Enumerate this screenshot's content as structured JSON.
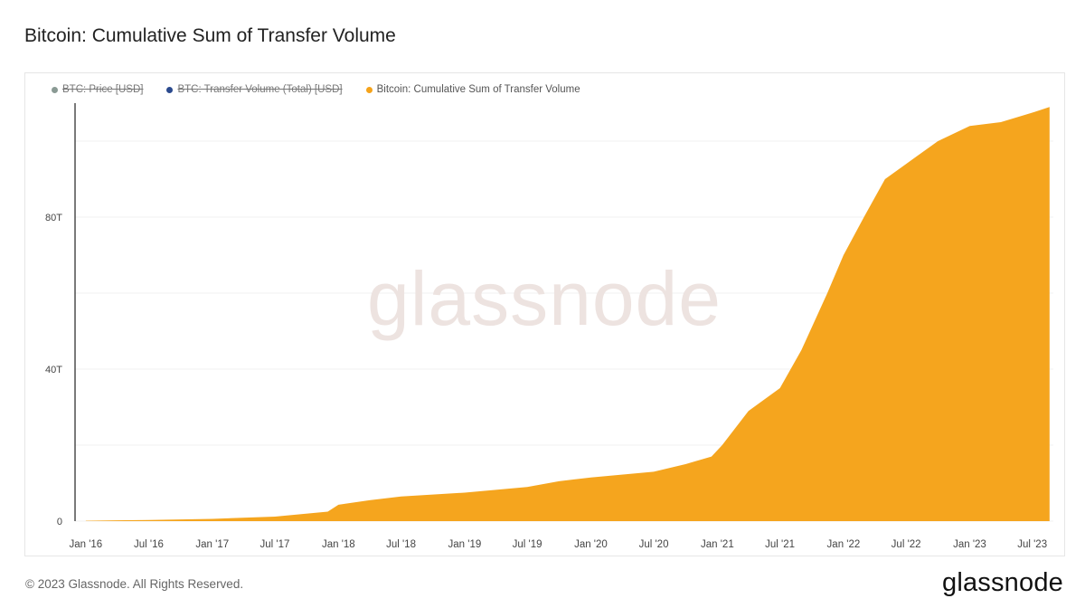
{
  "page": {
    "title": "Bitcoin: Cumulative Sum of Transfer Volume",
    "copyright": "© 2023 Glassnode. All Rights Reserved.",
    "logo_text": "glassnode",
    "watermark": "glassnode"
  },
  "legend": [
    {
      "label": "BTC: Price [USD]",
      "color": "#8a9a94",
      "hidden": true
    },
    {
      "label": "BTC: Transfer Volume (Total) [USD]",
      "color": "#2b4a8e",
      "hidden": true
    },
    {
      "label": "Bitcoin: Cumulative Sum of Transfer Volume",
      "color": "#f5a31a",
      "hidden": false
    }
  ],
  "chart_data": {
    "type": "area",
    "title": "Bitcoin: Cumulative Sum of Transfer Volume",
    "xlabel": "",
    "ylabel": "",
    "y_unit": "USD",
    "ylim": [
      0,
      110
    ],
    "y_ticks": [
      {
        "value": 0,
        "label": "0"
      },
      {
        "value": 40,
        "label": "40T"
      },
      {
        "value": 80,
        "label": "80T"
      }
    ],
    "x_range": [
      "2015-12-01",
      "2023-08-31"
    ],
    "x_ticks": [
      {
        "date": "2016-01-01",
        "label": "Jan '16"
      },
      {
        "date": "2016-07-01",
        "label": "Jul '16"
      },
      {
        "date": "2017-01-01",
        "label": "Jan '17"
      },
      {
        "date": "2017-07-01",
        "label": "Jul '17"
      },
      {
        "date": "2018-01-01",
        "label": "Jan '18"
      },
      {
        "date": "2018-07-01",
        "label": "Jul '18"
      },
      {
        "date": "2019-01-01",
        "label": "Jan '19"
      },
      {
        "date": "2019-07-01",
        "label": "Jul '19"
      },
      {
        "date": "2020-01-01",
        "label": "Jan '20"
      },
      {
        "date": "2020-07-01",
        "label": "Jul '20"
      },
      {
        "date": "2021-01-01",
        "label": "Jan '21"
      },
      {
        "date": "2021-07-01",
        "label": "Jul '21"
      },
      {
        "date": "2022-01-01",
        "label": "Jan '22"
      },
      {
        "date": "2022-07-01",
        "label": "Jul '22"
      },
      {
        "date": "2023-01-01",
        "label": "Jan '23"
      },
      {
        "date": "2023-07-01",
        "label": "Jul '23"
      }
    ],
    "grid": true,
    "legend_position": "top-left",
    "series": [
      {
        "name": "Bitcoin: Cumulative Sum of Transfer Volume",
        "color": "#f5a31a",
        "points": [
          {
            "x": "2016-01-01",
            "y": 0.1
          },
          {
            "x": "2016-07-01",
            "y": 0.3
          },
          {
            "x": "2017-01-01",
            "y": 0.6
          },
          {
            "x": "2017-07-01",
            "y": 1.2
          },
          {
            "x": "2017-12-01",
            "y": 2.5
          },
          {
            "x": "2018-01-01",
            "y": 4.3
          },
          {
            "x": "2018-04-01",
            "y": 5.5
          },
          {
            "x": "2018-07-01",
            "y": 6.5
          },
          {
            "x": "2019-01-01",
            "y": 7.5
          },
          {
            "x": "2019-07-01",
            "y": 9.0
          },
          {
            "x": "2019-10-01",
            "y": 10.5
          },
          {
            "x": "2020-01-01",
            "y": 11.5
          },
          {
            "x": "2020-07-01",
            "y": 13.0
          },
          {
            "x": "2020-10-01",
            "y": 15.0
          },
          {
            "x": "2020-12-15",
            "y": 17.0
          },
          {
            "x": "2021-01-15",
            "y": 20.0
          },
          {
            "x": "2021-04-01",
            "y": 29.0
          },
          {
            "x": "2021-07-01",
            "y": 35.0
          },
          {
            "x": "2021-09-01",
            "y": 45.0
          },
          {
            "x": "2021-11-15",
            "y": 60.0
          },
          {
            "x": "2022-01-01",
            "y": 70.0
          },
          {
            "x": "2022-03-01",
            "y": 80.0
          },
          {
            "x": "2022-05-01",
            "y": 90.0
          },
          {
            "x": "2022-07-01",
            "y": 94.0
          },
          {
            "x": "2022-10-01",
            "y": 100.0
          },
          {
            "x": "2023-01-01",
            "y": 104.0
          },
          {
            "x": "2023-04-01",
            "y": 105.0
          },
          {
            "x": "2023-07-01",
            "y": 107.5
          },
          {
            "x": "2023-08-20",
            "y": 109.0
          }
        ]
      }
    ]
  }
}
